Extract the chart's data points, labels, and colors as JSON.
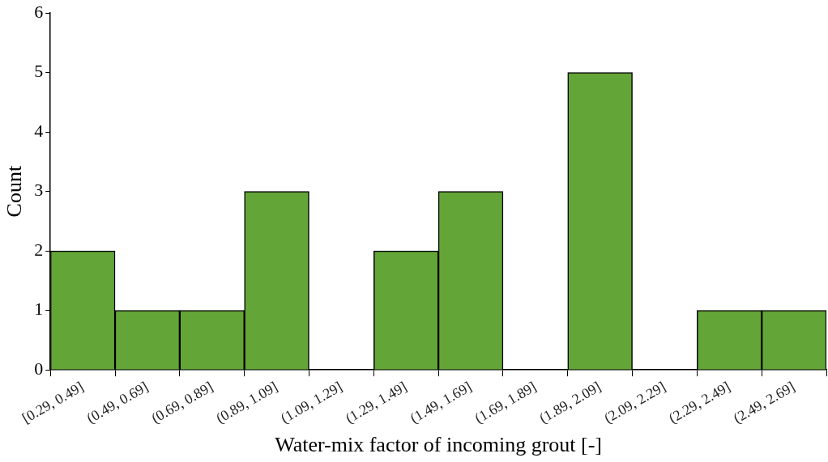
{
  "chart_data": {
    "type": "bar",
    "xlabel": "Water-mix factor of incoming grout [-]",
    "ylabel": "Count",
    "categories": [
      "[0.29, 0.49]",
      "(0.49, 0.69]",
      "(0.69, 0.89]",
      "(0.89, 1.09]",
      "(1.09, 1.29]",
      "(1.29, 1.49]",
      "(1.49, 1.69]",
      "(1.69, 1.89]",
      "(1.89, 2.09]",
      "(2.09, 2.29]",
      "(2.29, 2.49]",
      "(2.49, 2.69]"
    ],
    "values": [
      2,
      1,
      1,
      3,
      0,
      2,
      3,
      0,
      5,
      0,
      1,
      1
    ],
    "color": "#63a537",
    "ylim": [
      0,
      6
    ],
    "yticks": [
      0,
      1,
      2,
      3,
      4,
      5,
      6
    ],
    "grid": false,
    "legend": false
  }
}
